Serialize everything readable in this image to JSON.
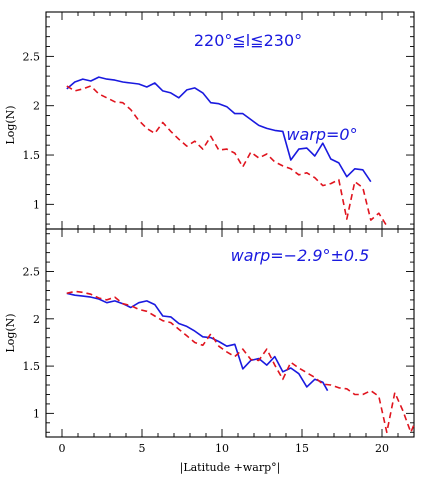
{
  "chart_data": [
    {
      "type": "line",
      "title": "220°≦l≦230°",
      "annotation": "warp=0°",
      "ylabel": "Log(N)",
      "xlabel": "",
      "xlim": [
        -1,
        22
      ],
      "ylim": [
        0.75,
        2.95
      ],
      "xticks": [
        0,
        5,
        10,
        15,
        20
      ],
      "yticks": [
        1,
        1.5,
        2,
        2.5
      ],
      "ytick_labels": [
        "1",
        "1.5",
        "2",
        "2.5"
      ],
      "series": [
        {
          "color": "#1a1adf",
          "style": "solid",
          "points": [
            [
              0.3,
              2.17
            ],
            [
              0.8,
              2.24
            ],
            [
              1.3,
              2.27
            ],
            [
              1.8,
              2.25
            ],
            [
              2.3,
              2.29
            ],
            [
              2.8,
              2.27
            ],
            [
              3.3,
              2.26
            ],
            [
              3.8,
              2.24
            ],
            [
              4.3,
              2.23
            ],
            [
              4.8,
              2.22
            ],
            [
              5.3,
              2.19
            ],
            [
              5.8,
              2.23
            ],
            [
              6.3,
              2.15
            ],
            [
              6.8,
              2.13
            ],
            [
              7.3,
              2.08
            ],
            [
              7.8,
              2.16
            ],
            [
              8.3,
              2.18
            ],
            [
              8.8,
              2.13
            ],
            [
              9.3,
              2.03
            ],
            [
              9.8,
              2.02
            ],
            [
              10.3,
              1.99
            ],
            [
              10.8,
              1.92
            ],
            [
              11.3,
              1.92
            ],
            [
              11.8,
              1.86
            ],
            [
              12.3,
              1.8
            ],
            [
              12.8,
              1.77
            ],
            [
              13.3,
              1.75
            ],
            [
              13.8,
              1.74
            ],
            [
              14.3,
              1.45
            ],
            [
              14.8,
              1.56
            ],
            [
              15.3,
              1.57
            ],
            [
              15.8,
              1.49
            ],
            [
              16.3,
              1.62
            ],
            [
              16.8,
              1.46
            ],
            [
              17.3,
              1.42
            ],
            [
              17.8,
              1.28
            ],
            [
              18.3,
              1.36
            ],
            [
              18.8,
              1.35
            ],
            [
              19.3,
              1.23
            ]
          ]
        },
        {
          "color": "#e0141e",
          "style": "dashed",
          "points": [
            [
              0.3,
              2.2
            ],
            [
              0.8,
              2.15
            ],
            [
              1.3,
              2.17
            ],
            [
              1.8,
              2.2
            ],
            [
              2.3,
              2.12
            ],
            [
              2.8,
              2.08
            ],
            [
              3.3,
              2.04
            ],
            [
              3.8,
              2.03
            ],
            [
              4.3,
              1.96
            ],
            [
              4.8,
              1.85
            ],
            [
              5.3,
              1.77
            ],
            [
              5.8,
              1.72
            ],
            [
              6.3,
              1.83
            ],
            [
              6.8,
              1.74
            ],
            [
              7.3,
              1.66
            ],
            [
              7.8,
              1.59
            ],
            [
              8.3,
              1.64
            ],
            [
              8.8,
              1.56
            ],
            [
              9.3,
              1.69
            ],
            [
              9.8,
              1.55
            ],
            [
              10.3,
              1.56
            ],
            [
              10.8,
              1.52
            ],
            [
              11.3,
              1.38
            ],
            [
              11.8,
              1.53
            ],
            [
              12.3,
              1.47
            ],
            [
              12.8,
              1.51
            ],
            [
              13.3,
              1.43
            ],
            [
              13.8,
              1.39
            ],
            [
              14.3,
              1.36
            ],
            [
              14.8,
              1.3
            ],
            [
              15.3,
              1.32
            ],
            [
              15.8,
              1.27
            ],
            [
              16.3,
              1.19
            ],
            [
              16.8,
              1.21
            ],
            [
              17.3,
              1.25
            ],
            [
              17.8,
              0.85
            ],
            [
              18.3,
              1.23
            ],
            [
              18.8,
              1.17
            ],
            [
              19.3,
              0.84
            ],
            [
              19.8,
              0.91
            ],
            [
              20.3,
              0.78
            ]
          ]
        }
      ]
    },
    {
      "type": "line",
      "title": "",
      "annotation": "warp=−2.9°±0.5",
      "ylabel": "Log(N)",
      "xlabel": "|Latitude +warp°|",
      "xlim": [
        -1,
        22
      ],
      "ylim": [
        0.75,
        2.95
      ],
      "xticks": [
        0,
        5,
        10,
        15,
        20
      ],
      "xtick_labels": [
        "0",
        "5",
        "10",
        "15",
        "20"
      ],
      "yticks": [
        1,
        1.5,
        2,
        2.5
      ],
      "ytick_labels": [
        "1",
        "1.5",
        "2",
        "2.5"
      ],
      "series": [
        {
          "color": "#1a1adf",
          "style": "solid",
          "points": [
            [
              0.3,
              2.27
            ],
            [
              0.8,
              2.25
            ],
            [
              1.3,
              2.24
            ],
            [
              1.8,
              2.23
            ],
            [
              2.3,
              2.21
            ],
            [
              2.8,
              2.17
            ],
            [
              3.3,
              2.19
            ],
            [
              3.8,
              2.16
            ],
            [
              4.3,
              2.12
            ],
            [
              4.8,
              2.17
            ],
            [
              5.3,
              2.19
            ],
            [
              5.8,
              2.15
            ],
            [
              6.3,
              2.03
            ],
            [
              6.8,
              2.02
            ],
            [
              7.3,
              1.95
            ],
            [
              7.8,
              1.92
            ],
            [
              8.3,
              1.87
            ],
            [
              8.8,
              1.81
            ],
            [
              9.3,
              1.8
            ],
            [
              9.8,
              1.76
            ],
            [
              10.3,
              1.71
            ],
            [
              10.8,
              1.73
            ],
            [
              11.3,
              1.47
            ],
            [
              11.8,
              1.56
            ],
            [
              12.3,
              1.58
            ],
            [
              12.8,
              1.51
            ],
            [
              13.3,
              1.6
            ],
            [
              13.8,
              1.44
            ],
            [
              14.3,
              1.48
            ],
            [
              14.8,
              1.42
            ],
            [
              15.3,
              1.28
            ],
            [
              15.8,
              1.36
            ],
            [
              16.3,
              1.33
            ],
            [
              16.6,
              1.24
            ]
          ]
        },
        {
          "color": "#e0141e",
          "style": "dashed",
          "points": [
            [
              0.3,
              2.27
            ],
            [
              0.8,
              2.29
            ],
            [
              1.3,
              2.28
            ],
            [
              1.8,
              2.26
            ],
            [
              2.3,
              2.22
            ],
            [
              2.8,
              2.2
            ],
            [
              3.3,
              2.23
            ],
            [
              3.8,
              2.16
            ],
            [
              4.3,
              2.14
            ],
            [
              4.8,
              2.1
            ],
            [
              5.3,
              2.08
            ],
            [
              5.8,
              2.03
            ],
            [
              6.3,
              1.98
            ],
            [
              6.8,
              1.96
            ],
            [
              7.3,
              1.89
            ],
            [
              7.8,
              1.82
            ],
            [
              8.3,
              1.75
            ],
            [
              8.8,
              1.72
            ],
            [
              9.3,
              1.84
            ],
            [
              9.8,
              1.71
            ],
            [
              10.3,
              1.65
            ],
            [
              10.8,
              1.6
            ],
            [
              11.3,
              1.68
            ],
            [
              11.8,
              1.57
            ],
            [
              12.3,
              1.56
            ],
            [
              12.8,
              1.68
            ],
            [
              13.3,
              1.51
            ],
            [
              13.8,
              1.36
            ],
            [
              14.3,
              1.54
            ],
            [
              14.8,
              1.48
            ],
            [
              15.3,
              1.43
            ],
            [
              15.8,
              1.38
            ],
            [
              16.3,
              1.31
            ],
            [
              16.8,
              1.3
            ],
            [
              17.3,
              1.27
            ],
            [
              17.8,
              1.26
            ],
            [
              18.3,
              1.2
            ],
            [
              18.8,
              1.2
            ],
            [
              19.3,
              1.24
            ],
            [
              19.8,
              1.18
            ],
            [
              20.3,
              0.8
            ],
            [
              20.8,
              1.22
            ],
            [
              21.3,
              1.03
            ],
            [
              21.8,
              0.8
            ],
            [
              22,
              0.88
            ]
          ]
        }
      ]
    }
  ]
}
